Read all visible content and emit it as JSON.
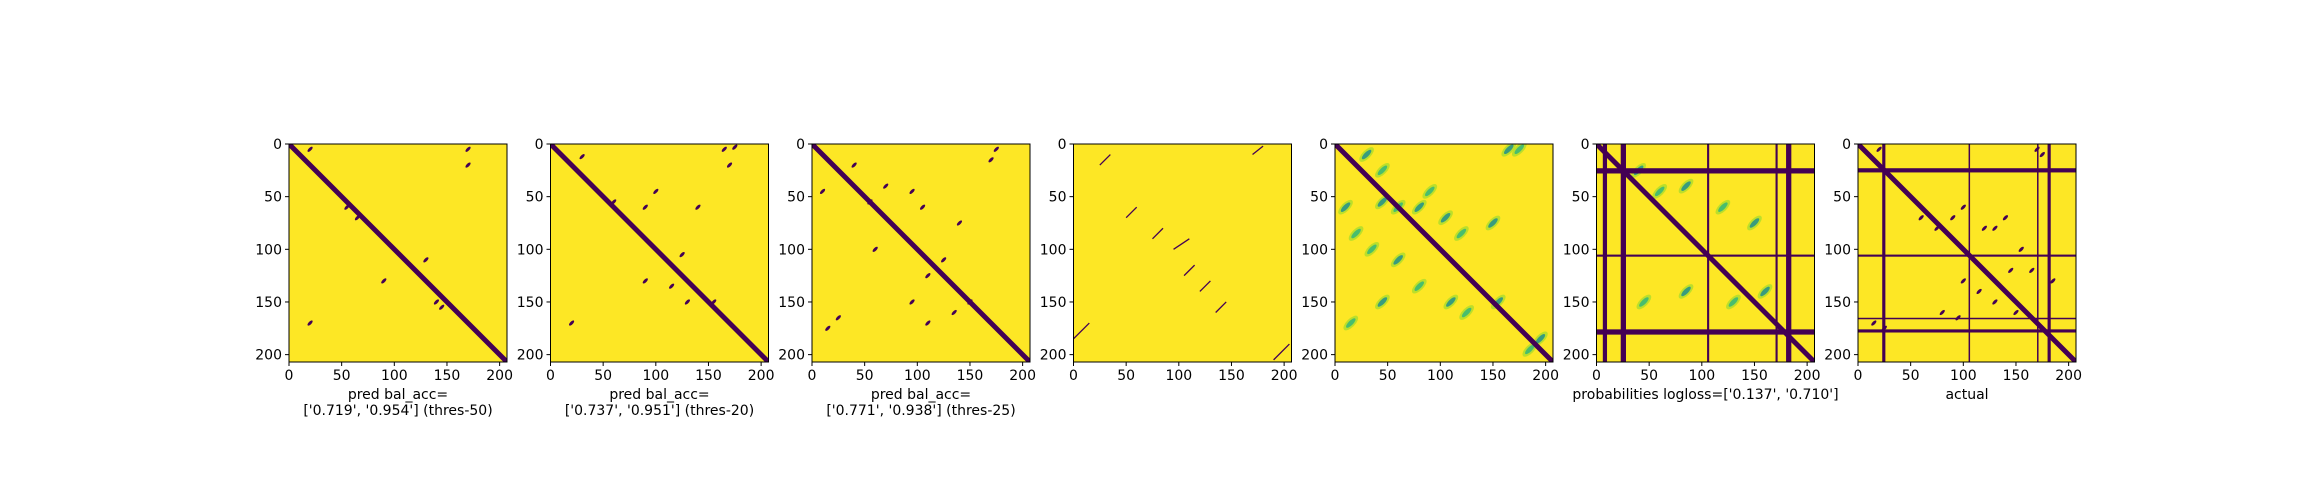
{
  "chart_data": [
    {
      "type": "heatmap",
      "xlabel": [
        "pred bal_acc=",
        "['0.719', '0.954'] (thres-50)"
      ],
      "x_ticks": [
        0,
        50,
        100,
        150,
        200
      ],
      "y_ticks": [
        0,
        50,
        100,
        150,
        200
      ],
      "xlim": [
        0,
        207
      ],
      "ylim": [
        207,
        0
      ],
      "colors": {
        "background": "#fde725",
        "contact": "#440154"
      },
      "diagonal_band": true,
      "blobs": [
        [
          20,
          5
        ],
        [
          170,
          5
        ],
        [
          55,
          60
        ],
        [
          65,
          70
        ],
        [
          20,
          170
        ],
        [
          170,
          20
        ],
        [
          130,
          110
        ],
        [
          90,
          130
        ],
        [
          140,
          150
        ],
        [
          145,
          155
        ]
      ]
    },
    {
      "type": "heatmap",
      "xlabel": [
        "pred bal_acc=",
        "['0.737', '0.951'] (thres-20)"
      ],
      "x_ticks": [
        0,
        50,
        100,
        150,
        200
      ],
      "y_ticks": [
        0,
        50,
        100,
        150,
        200
      ],
      "xlim": [
        0,
        207
      ],
      "ylim": [
        207,
        0
      ],
      "colors": {
        "background": "#fde725",
        "contact": "#440154"
      },
      "diagonal_band": true,
      "blobs": [
        [
          30,
          12
        ],
        [
          165,
          5
        ],
        [
          175,
          3
        ],
        [
          60,
          55
        ],
        [
          90,
          60
        ],
        [
          100,
          45
        ],
        [
          140,
          60
        ],
        [
          20,
          170
        ],
        [
          170,
          20
        ],
        [
          155,
          150
        ],
        [
          125,
          105
        ],
        [
          115,
          135
        ],
        [
          130,
          150
        ],
        [
          90,
          130
        ]
      ]
    },
    {
      "type": "heatmap",
      "xlabel": [
        "pred bal_acc=",
        "['0.771', '0.938'] (thres-25)"
      ],
      "x_ticks": [
        0,
        50,
        100,
        150,
        200
      ],
      "y_ticks": [
        0,
        50,
        100,
        150,
        200
      ],
      "xlim": [
        0,
        207
      ],
      "ylim": [
        207,
        0
      ],
      "colors": {
        "background": "#fde725",
        "contact": "#440154"
      },
      "diagonal_band": true,
      "blobs": [
        [
          10,
          45
        ],
        [
          40,
          20
        ],
        [
          55,
          55
        ],
        [
          70,
          40
        ],
        [
          95,
          45
        ],
        [
          105,
          60
        ],
        [
          140,
          75
        ],
        [
          15,
          175
        ],
        [
          25,
          165
        ],
        [
          170,
          15
        ],
        [
          175,
          5
        ],
        [
          60,
          100
        ],
        [
          110,
          125
        ],
        [
          125,
          110
        ],
        [
          150,
          150
        ],
        [
          135,
          160
        ],
        [
          110,
          170
        ],
        [
          95,
          150
        ]
      ]
    },
    {
      "type": "heatmap",
      "xlabel": [],
      "x_ticks": [
        0,
        50,
        100,
        150,
        200
      ],
      "y_ticks": [
        0,
        50,
        100,
        150,
        200
      ],
      "xlim": [
        0,
        207
      ],
      "ylim": [
        207,
        0
      ],
      "colors": {
        "background": "#fde725",
        "contact": "#440154"
      },
      "diagonal_band": false,
      "blobs": [],
      "thin_lines": [
        [
          [
            25,
            20
          ],
          [
            35,
            10
          ]
        ],
        [
          [
            170,
            10
          ],
          [
            180,
            2
          ]
        ],
        [
          [
            0,
            185
          ],
          [
            15,
            170
          ]
        ],
        [
          [
            190,
            205
          ],
          [
            205,
            190
          ]
        ],
        [
          [
            50,
            70
          ],
          [
            60,
            60
          ]
        ],
        [
          [
            75,
            90
          ],
          [
            85,
            80
          ]
        ],
        [
          [
            95,
            100
          ],
          [
            110,
            90
          ]
        ],
        [
          [
            105,
            125
          ],
          [
            115,
            115
          ]
        ],
        [
          [
            120,
            140
          ],
          [
            130,
            130
          ]
        ],
        [
          [
            135,
            160
          ],
          [
            145,
            150
          ]
        ]
      ]
    },
    {
      "type": "heatmap",
      "xlabel": [],
      "x_ticks": [
        0,
        50,
        100,
        150,
        200
      ],
      "y_ticks": [
        0,
        50,
        100,
        150,
        200
      ],
      "xlim": [
        0,
        207
      ],
      "ylim": [
        207,
        0
      ],
      "colors": {
        "background": "#fde725",
        "contact": "#440154",
        "mid": "#35b779",
        "mid2": "#21918c",
        "light": "#b5de2b"
      },
      "diagonal_band": true,
      "probabilities": true,
      "blobs": [
        [
          30,
          10
        ],
        [
          45,
          25
        ],
        [
          165,
          5
        ],
        [
          175,
          5
        ],
        [
          10,
          60
        ],
        [
          20,
          85
        ],
        [
          45,
          55
        ],
        [
          60,
          60
        ],
        [
          80,
          60
        ],
        [
          90,
          45
        ],
        [
          105,
          70
        ],
        [
          120,
          85
        ],
        [
          150,
          75
        ],
        [
          35,
          100
        ],
        [
          60,
          110
        ],
        [
          15,
          170
        ],
        [
          45,
          150
        ],
        [
          80,
          135
        ],
        [
          110,
          150
        ],
        [
          125,
          160
        ],
        [
          155,
          150
        ],
        [
          185,
          195
        ],
        [
          195,
          185
        ]
      ]
    },
    {
      "type": "heatmap",
      "xlabel": [
        "probabilities logloss=['0.137', '0.710']"
      ],
      "x_ticks": [
        0,
        50,
        100,
        150,
        200
      ],
      "y_ticks": [
        0,
        50,
        100,
        150,
        200
      ],
      "xlim": [
        0,
        207
      ],
      "ylim": [
        207,
        0
      ],
      "colors": {
        "background": "#fde725",
        "contact": "#440154",
        "mid": "#35b779",
        "mid2": "#21918c",
        "light": "#b5de2b"
      },
      "diagonal_band": true,
      "probabilities": true,
      "bars_v": [
        [
          6,
          4
        ],
        [
          23,
          5
        ],
        [
          105,
          2
        ],
        [
          170,
          2
        ],
        [
          180,
          5
        ]
      ],
      "bars_h": [
        [
          23,
          5
        ],
        [
          105,
          2
        ],
        [
          176,
          5
        ]
      ],
      "blobs": [
        [
          40,
          25
        ],
        [
          60,
          45
        ],
        [
          85,
          40
        ],
        [
          120,
          60
        ],
        [
          150,
          75
        ],
        [
          45,
          150
        ],
        [
          85,
          140
        ],
        [
          130,
          150
        ],
        [
          160,
          140
        ]
      ]
    },
    {
      "type": "heatmap",
      "xlabel": [
        "actual"
      ],
      "x_ticks": [
        0,
        50,
        100,
        150,
        200
      ],
      "y_ticks": [
        0,
        50,
        100,
        150,
        200
      ],
      "xlim": [
        0,
        207
      ],
      "ylim": [
        207,
        0
      ],
      "colors": {
        "background": "#fde725",
        "contact": "#440154"
      },
      "diagonal_band": true,
      "bars_v": [
        [
          23,
          3
        ],
        [
          105,
          1
        ],
        [
          170,
          1
        ],
        [
          180,
          3
        ]
      ],
      "bars_h": [
        [
          23,
          4
        ],
        [
          105,
          2
        ],
        [
          165,
          1
        ],
        [
          176,
          3
        ]
      ],
      "blobs": [
        [
          20,
          5
        ],
        [
          170,
          5
        ],
        [
          175,
          10
        ],
        [
          15,
          170
        ],
        [
          25,
          175
        ],
        [
          60,
          70
        ],
        [
          75,
          80
        ],
        [
          90,
          70
        ],
        [
          100,
          60
        ],
        [
          120,
          80
        ],
        [
          130,
          80
        ],
        [
          140,
          70
        ],
        [
          155,
          100
        ],
        [
          145,
          120
        ],
        [
          165,
          120
        ],
        [
          185,
          130
        ],
        [
          100,
          130
        ],
        [
          115,
          140
        ],
        [
          80,
          160
        ],
        [
          95,
          165
        ],
        [
          150,
          160
        ],
        [
          130,
          150
        ]
      ]
    }
  ]
}
